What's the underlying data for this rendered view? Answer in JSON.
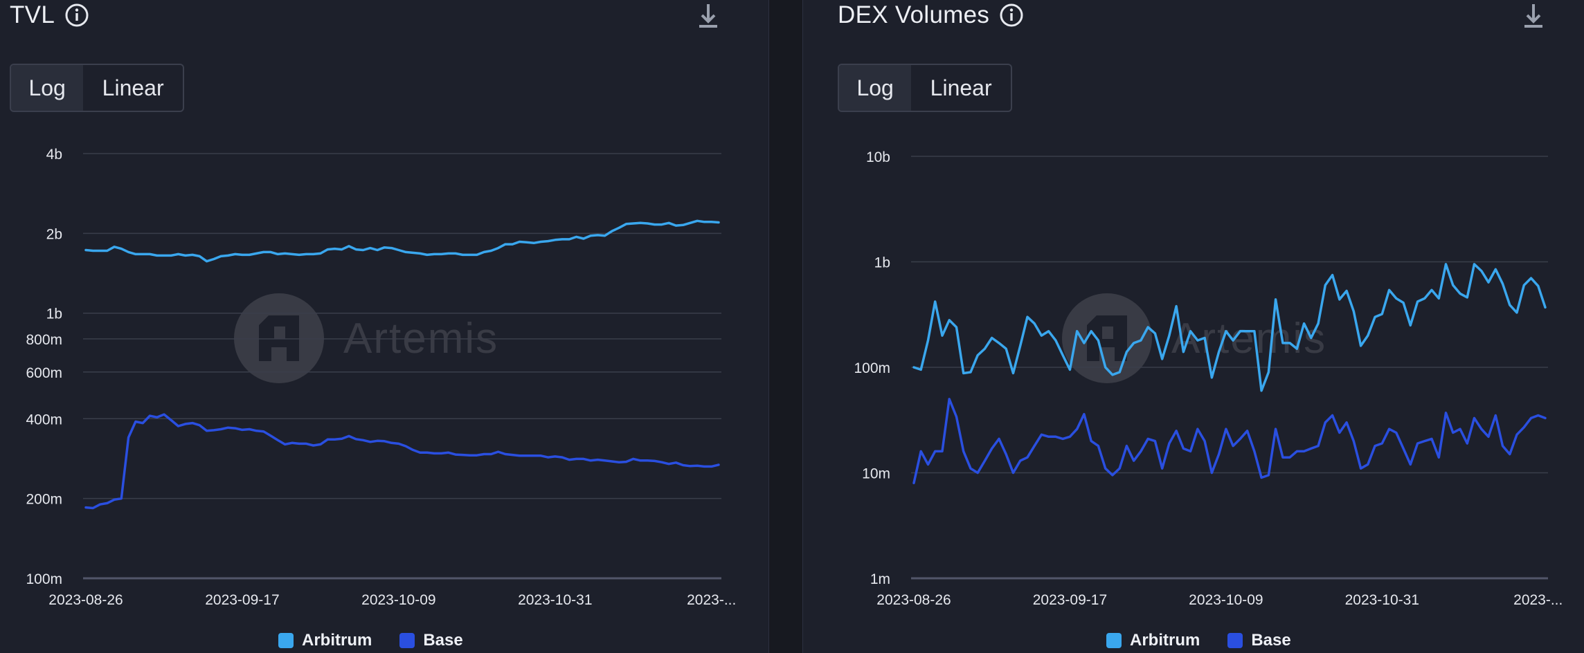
{
  "colors": {
    "arbitrum": "#3aa7ee",
    "base": "#2a4fe0",
    "grid": "#3a3e4b",
    "axis": "#52566a"
  },
  "watermark": "Artemis",
  "charts": [
    {
      "title": "TVL",
      "toggle": {
        "options": [
          "Log",
          "Linear"
        ],
        "selected": "Log"
      },
      "legend": [
        {
          "name": "Arbitrum",
          "color": "#3aa7ee"
        },
        {
          "name": "Base",
          "color": "#2a4fe0"
        }
      ]
    },
    {
      "title": "DEX Volumes",
      "toggle": {
        "options": [
          "Log",
          "Linear"
        ],
        "selected": "Log"
      },
      "legend": [
        {
          "name": "Arbitrum",
          "color": "#3aa7ee"
        },
        {
          "name": "Base",
          "color": "#2a4fe0"
        }
      ]
    }
  ],
  "chart_data": [
    {
      "type": "line",
      "title": "TVL",
      "scale": "log",
      "ylim": [
        100000000,
        4000000000
      ],
      "y_ticks": [
        {
          "value": 4000000000,
          "label": "4b"
        },
        {
          "value": 2000000000,
          "label": "2b"
        },
        {
          "value": 1000000000,
          "label": "1b"
        },
        {
          "value": 800000000,
          "label": "800m"
        },
        {
          "value": 600000000,
          "label": "600m"
        },
        {
          "value": 400000000,
          "label": "400m"
        },
        {
          "value": 200000000,
          "label": "200m"
        },
        {
          "value": 100000000,
          "label": "100m"
        }
      ],
      "x_ticks": [
        {
          "index": 0,
          "label": "2023-08-26"
        },
        {
          "index": 22,
          "label": "2023-09-17"
        },
        {
          "index": 44,
          "label": "2023-10-09"
        },
        {
          "index": 66,
          "label": "2023-10-31"
        },
        {
          "index": 88,
          "label": "2023-..."
        }
      ],
      "x_count": 90,
      "series": [
        {
          "name": "Arbitrum",
          "values": [
            1730000000.0,
            1720000000.0,
            1720000000.0,
            1720000000.0,
            1780000000.0,
            1750000000.0,
            1700000000.0,
            1670000000.0,
            1670000000.0,
            1670000000.0,
            1650000000.0,
            1650000000.0,
            1650000000.0,
            1670000000.0,
            1650000000.0,
            1660000000.0,
            1640000000.0,
            1570000000.0,
            1600000000.0,
            1640000000.0,
            1650000000.0,
            1670000000.0,
            1660000000.0,
            1660000000.0,
            1680000000.0,
            1700000000.0,
            1700000000.0,
            1670000000.0,
            1680000000.0,
            1670000000.0,
            1660000000.0,
            1670000000.0,
            1670000000.0,
            1680000000.0,
            1740000000.0,
            1750000000.0,
            1740000000.0,
            1790000000.0,
            1740000000.0,
            1730000000.0,
            1760000000.0,
            1730000000.0,
            1770000000.0,
            1760000000.0,
            1730000000.0,
            1700000000.0,
            1690000000.0,
            1680000000.0,
            1660000000.0,
            1670000000.0,
            1670000000.0,
            1680000000.0,
            1680000000.0,
            1660000000.0,
            1660000000.0,
            1660000000.0,
            1700000000.0,
            1720000000.0,
            1760000000.0,
            1820000000.0,
            1820000000.0,
            1860000000.0,
            1850000000.0,
            1840000000.0,
            1860000000.0,
            1870000000.0,
            1890000000.0,
            1900000000.0,
            1900000000.0,
            1940000000.0,
            1910000000.0,
            1960000000.0,
            1970000000.0,
            1960000000.0,
            2040000000.0,
            2100000000.0,
            2170000000.0,
            2180000000.0,
            2190000000.0,
            2180000000.0,
            2160000000.0,
            2160000000.0,
            2190000000.0,
            2140000000.0,
            2150000000.0,
            2190000000.0,
            2230000000.0,
            2210000000.0,
            2210000000.0,
            2200000000.0
          ]
        },
        {
          "name": "Base",
          "values": [
            185000000.0,
            184000000.0,
            190000000.0,
            192000000.0,
            198000000.0,
            200000000.0,
            340000000.0,
            390000000.0,
            385000000.0,
            410000000.0,
            405000000.0,
            415000000.0,
            395000000.0,
            375000000.0,
            382000000.0,
            385000000.0,
            378000000.0,
            360000000.0,
            362000000.0,
            365000000.0,
            370000000.0,
            368000000.0,
            363000000.0,
            365000000.0,
            360000000.0,
            358000000.0,
            345000000.0,
            332000000.0,
            320000000.0,
            324000000.0,
            322000000.0,
            322000000.0,
            317000000.0,
            320000000.0,
            334000000.0,
            334000000.0,
            336000000.0,
            344000000.0,
            335000000.0,
            332000000.0,
            327000000.0,
            330000000.0,
            329000000.0,
            324000000.0,
            322000000.0,
            315000000.0,
            305000000.0,
            298000000.0,
            298000000.0,
            296000000.0,
            296000000.0,
            298000000.0,
            293000000.0,
            292000000.0,
            291000000.0,
            291000000.0,
            294000000.0,
            294000000.0,
            300000000.0,
            294000000.0,
            292000000.0,
            290000000.0,
            290000000.0,
            290000000.0,
            290000000.0,
            286000000.0,
            288000000.0,
            286000000.0,
            280000000.0,
            282000000.0,
            282000000.0,
            278000000.0,
            280000000.0,
            278000000.0,
            276000000.0,
            274000000.0,
            275000000.0,
            282000000.0,
            278000000.0,
            278000000.0,
            277000000.0,
            274000000.0,
            270000000.0,
            273000000.0,
            267000000.0,
            265000000.0,
            266000000.0,
            264000000.0,
            264000000.0,
            268000000.0
          ]
        }
      ],
      "legend": [
        "Arbitrum",
        "Base"
      ]
    },
    {
      "type": "line",
      "title": "DEX Volumes",
      "scale": "log",
      "ylim": [
        1000000,
        10000000000
      ],
      "y_ticks": [
        {
          "value": 10000000000,
          "label": "10b"
        },
        {
          "value": 1000000000,
          "label": "1b"
        },
        {
          "value": 100000000,
          "label": "100m"
        },
        {
          "value": 10000000,
          "label": "10m"
        },
        {
          "value": 1000000,
          "label": "1m"
        }
      ],
      "x_ticks": [
        {
          "index": 0,
          "label": "2023-08-26"
        },
        {
          "index": 22,
          "label": "2023-09-17"
        },
        {
          "index": 44,
          "label": "2023-10-09"
        },
        {
          "index": 66,
          "label": "2023-10-31"
        },
        {
          "index": 88,
          "label": "2023-..."
        }
      ],
      "x_count": 90,
      "series": [
        {
          "name": "Arbitrum",
          "values": [
            100000000.0,
            95000000.0,
            180000000.0,
            420000000.0,
            200000000.0,
            280000000.0,
            240000000.0,
            88000000.0,
            90000000.0,
            130000000.0,
            150000000.0,
            190000000.0,
            170000000.0,
            150000000.0,
            88000000.0,
            160000000.0,
            300000000.0,
            260000000.0,
            200000000.0,
            220000000.0,
            180000000.0,
            130000000.0,
            95000000.0,
            220000000.0,
            170000000.0,
            220000000.0,
            180000000.0,
            100000000.0,
            85000000.0,
            90000000.0,
            140000000.0,
            170000000.0,
            180000000.0,
            240000000.0,
            210000000.0,
            120000000.0,
            200000000.0,
            380000000.0,
            140000000.0,
            220000000.0,
            180000000.0,
            190000000.0,
            80000000.0,
            140000000.0,
            220000000.0,
            180000000.0,
            220000000.0,
            220000000.0,
            220000000.0,
            60000000.0,
            90000000.0,
            440000000.0,
            170000000.0,
            170000000.0,
            150000000.0,
            260000000.0,
            190000000.0,
            260000000.0,
            600000000.0,
            750000000.0,
            440000000.0,
            530000000.0,
            340000000.0,
            160000000.0,
            200000000.0,
            300000000.0,
            320000000.0,
            540000000.0,
            450000000.0,
            410000000.0,
            250000000.0,
            420000000.0,
            450000000.0,
            540000000.0,
            450000000.0,
            950000000.0,
            600000000.0,
            500000000.0,
            460000000.0,
            950000000.0,
            820000000.0,
            640000000.0,
            850000000.0,
            620000000.0,
            390000000.0,
            330000000.0,
            600000000.0,
            700000000.0,
            590000000.0,
            370000000.0
          ]
        },
        {
          "name": "Base",
          "values": [
            8000000.0,
            16000000.0,
            12000000.0,
            16000000.0,
            16000000.0,
            50000000.0,
            34000000.0,
            16000000.0,
            11000000.0,
            10000000.0,
            13000000.0,
            17000000.0,
            21000000.0,
            15000000.0,
            10000000.0,
            13000000.0,
            14000000.0,
            18000000.0,
            23000000.0,
            22000000.0,
            22000000.0,
            21000000.0,
            22000000.0,
            26000000.0,
            36000000.0,
            20000000.0,
            18000000.0,
            11000000.0,
            9500000.0,
            11000000.0,
            18000000.0,
            13000000.0,
            16000000.0,
            21000000.0,
            20000000.0,
            11000000.0,
            19000000.0,
            25000000.0,
            17000000.0,
            16000000.0,
            26000000.0,
            20000000.0,
            10000000.0,
            15000000.0,
            26000000.0,
            18000000.0,
            21000000.0,
            25000000.0,
            16000000.0,
            9000000.0,
            9500000.0,
            26000000.0,
            14000000.0,
            14000000.0,
            16000000.0,
            16000000.0,
            17000000.0,
            18000000.0,
            30000000.0,
            35000000.0,
            24000000.0,
            30000000.0,
            20000000.0,
            11000000.0,
            12000000.0,
            18000000.0,
            19000000.0,
            26000000.0,
            24000000.0,
            17000000.0,
            12000000.0,
            19000000.0,
            20000000.0,
            21000000.0,
            14000000.0,
            37000000.0,
            24000000.0,
            26000000.0,
            19000000.0,
            33000000.0,
            26000000.0,
            22000000.0,
            35000000.0,
            18000000.0,
            15000000.0,
            23000000.0,
            27000000.0,
            33000000.0,
            35000000.0,
            33000000.0
          ]
        }
      ],
      "legend": [
        "Arbitrum",
        "Base"
      ]
    }
  ]
}
